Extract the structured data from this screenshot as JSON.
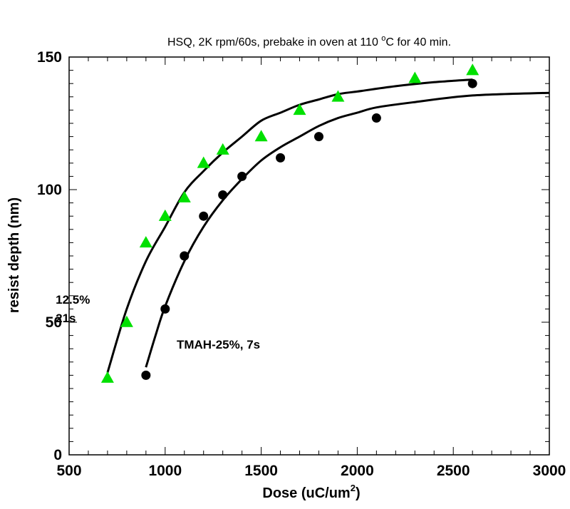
{
  "chart_data": {
    "type": "scatter",
    "title_main": "HSQ, 2K rpm/60s, prebake in oven at 110 ",
    "title_degree": "o",
    "title_tail": "C for 40 min.",
    "xlabel_main": "Dose (uC/um",
    "xlabel_sup": "2",
    "xlabel_close": ")",
    "ylabel": "resist depth (nm)",
    "xlim": [
      500,
      3000
    ],
    "ylim": [
      0,
      150
    ],
    "x_major_ticks": [
      500,
      1000,
      1500,
      2000,
      2500,
      3000
    ],
    "y_major_ticks": [
      0,
      50,
      100,
      150
    ],
    "x_tick_labels": [
      "500",
      "1000",
      "1500",
      "2000",
      "2500",
      "3000"
    ],
    "y_tick_labels": [
      "0",
      "50",
      "100",
      "150"
    ],
    "grid": false,
    "legend": "none",
    "series": [
      {
        "marker": "triangle",
        "color": "#00e000",
        "x": [
          700,
          800,
          900,
          1000,
          1100,
          1200,
          1300,
          1500,
          1700,
          1900,
          2300,
          2600
        ],
        "y": [
          29,
          50,
          80,
          90,
          97,
          110,
          115,
          120,
          130,
          135,
          142,
          145
        ]
      },
      {
        "marker": "circle",
        "color": "#000000",
        "x": [
          900,
          1000,
          1100,
          1200,
          1300,
          1400,
          1600,
          1800,
          2100,
          2600
        ],
        "y": [
          30,
          55,
          75,
          90,
          98,
          105,
          112,
          120,
          127,
          140
        ]
      }
    ],
    "fits": [
      {
        "color": "#000000",
        "x": [
          700,
          800,
          900,
          1000,
          1100,
          1200,
          1300,
          1400,
          1500,
          1600,
          1700,
          1800,
          1900,
          2000,
          2200,
          2400,
          2600
        ],
        "y": [
          31,
          55,
          73,
          86,
          99,
          107,
          114,
          120,
          126,
          129,
          132,
          134,
          136,
          137,
          139,
          140.5,
          141.5
        ]
      },
      {
        "color": "#000000",
        "x": [
          900,
          950,
          1000,
          1100,
          1200,
          1300,
          1400,
          1500,
          1600,
          1700,
          1800,
          1900,
          2000,
          2100,
          2300,
          2600,
          3000
        ],
        "y": [
          33,
          45,
          56,
          73,
          86,
          96,
          104,
          111,
          116,
          120,
          124,
          127,
          129,
          131,
          133,
          135.5,
          136.5
        ]
      }
    ],
    "annotations": [
      {
        "id": "annot-12-5",
        "text": "12.5%",
        "x": 430,
        "y": 57
      },
      {
        "id": "annot-21s",
        "text": "21s",
        "x": 430,
        "y": 50
      },
      {
        "id": "annot-tmah",
        "text": "TMAH-25%, 7s",
        "x": 1060,
        "y": 40
      }
    ]
  }
}
